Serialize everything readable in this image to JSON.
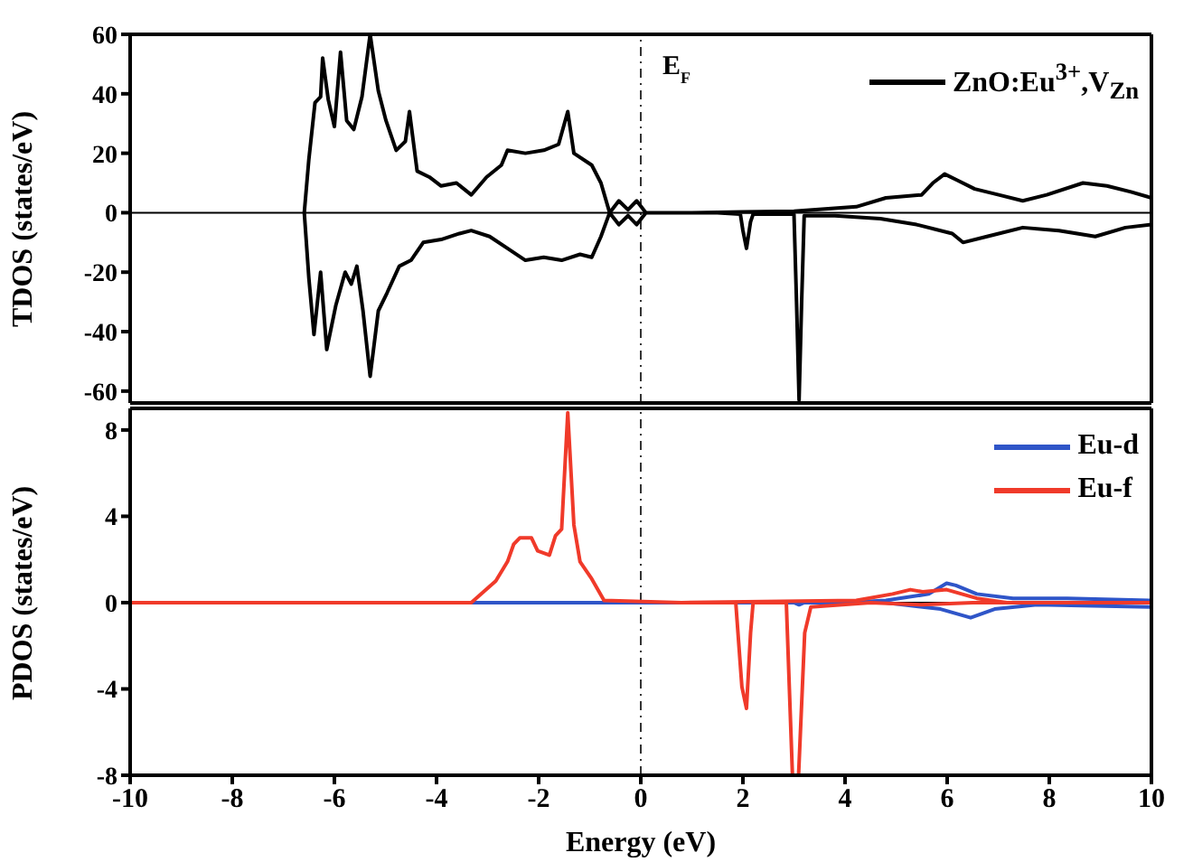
{
  "chart_data": [
    {
      "type": "line",
      "ylabel": "TDOS (states/eV)",
      "xlim": [
        -10,
        10
      ],
      "ylim": [
        -64,
        60
      ],
      "yticks": [
        -60,
        -40,
        -20,
        0,
        20,
        40,
        60
      ],
      "tick_labels": "y",
      "legend": "top right",
      "marker": "none",
      "line_style": "solid",
      "ref_lines": [
        {
          "axis": "x",
          "value": 0,
          "label": "E$_{F}$",
          "color": "#333333",
          "line_style": "dashed"
        },
        {
          "axis": "y",
          "value": 0,
          "label": null,
          "color": "#000000",
          "line_style": "solid"
        }
      ],
      "series": [
        {
          "name": "ZnO:Eu$^{3+}$,V$_{Zn}$",
          "color": "#000000",
          "x": [
            -6.59,
            -6.5,
            -6.38,
            -6.27,
            -6.23,
            -6.12,
            -6.0,
            -5.88,
            -5.76,
            -5.62,
            -5.46,
            -5.3,
            -5.14,
            -4.99,
            -4.79,
            -4.61,
            -4.53,
            -4.38,
            -4.14,
            -3.91,
            -3.61,
            -3.32,
            -3.02,
            -2.73,
            -2.61,
            -2.26,
            -1.9,
            -1.61,
            -1.43,
            -1.31,
            -0.96,
            -0.78,
            -0.61,
            -0.43,
            -0.25,
            -0.08,
            0.1,
            1.0,
            2.0,
            3.0,
            4.22,
            4.8,
            5.5,
            5.72,
            5.95,
            6.19,
            6.54,
            7.01,
            7.48,
            7.95,
            8.66,
            9.13,
            9.6,
            10.0,
            null,
            -6.59,
            -6.5,
            -6.4,
            -6.27,
            -6.15,
            -5.97,
            -5.79,
            -5.67,
            -5.56,
            -5.44,
            -5.3,
            -5.14,
            -4.97,
            -4.73,
            -4.5,
            -4.26,
            -3.91,
            -3.55,
            -3.32,
            -2.96,
            -2.61,
            -2.26,
            -1.9,
            -1.55,
            -1.19,
            -0.96,
            -0.78,
            -0.61,
            -0.43,
            -0.25,
            -0.08,
            0.1,
            1.5,
            1.95,
            2.0,
            2.07,
            2.15,
            2.2,
            3.0,
            3.05,
            3.1,
            3.15,
            3.2,
            3.8,
            4.69,
            5.4,
            6.1,
            6.31,
            6.78,
            7.48,
            8.19,
            8.9,
            9.49,
            10.0
          ],
          "values": [
            0,
            18,
            37,
            39,
            52,
            38,
            29,
            54,
            31,
            28,
            39,
            60,
            41,
            31,
            21,
            24,
            34,
            14,
            12,
            9,
            10,
            6,
            12,
            16,
            21,
            20,
            21,
            23,
            34,
            20,
            16,
            10,
            0,
            4,
            1,
            4,
            0,
            0,
            0.3,
            0.5,
            2,
            5,
            6,
            10,
            13,
            11,
            8,
            6,
            4,
            6,
            10,
            9,
            7,
            5,
            null,
            0,
            -22,
            -41,
            -20,
            -46,
            -31,
            -20,
            -24,
            -18,
            -33,
            -55,
            -33,
            -27,
            -18,
            -16,
            -10,
            -9,
            -7,
            -6,
            -8,
            -12,
            -16,
            -15,
            -16,
            -14,
            -15,
            -8,
            0,
            -4,
            -1,
            -4,
            0,
            0,
            -0.5,
            -6,
            -12,
            -3,
            -0.5,
            -0.5,
            -30,
            -63,
            -30,
            -1,
            -1,
            -2,
            -4,
            -7,
            -10,
            -8,
            -5,
            -6,
            -8,
            -5,
            -4
          ]
        }
      ]
    },
    {
      "type": "line",
      "xlabel": "Energy (eV)",
      "ylabel": "PDOS (states/eV)",
      "xlim": [
        -10,
        10
      ],
      "xticks": [
        -10,
        -8,
        -6,
        -4,
        -2,
        0,
        2,
        4,
        6,
        8,
        10
      ],
      "ylim": [
        -8,
        9
      ],
      "yticks": [
        -8,
        -4,
        0,
        4,
        8
      ],
      "legend": "top right",
      "marker": "none",
      "line_style": "solid",
      "ref_lines": [
        {
          "axis": "x",
          "value": 0,
          "label": null,
          "color": "#333333",
          "line_style": "dashed"
        },
        {
          "axis": "y",
          "value": 0,
          "label": null,
          "color": "#000000",
          "line_style": "solid"
        }
      ],
      "series": [
        {
          "name": "Eu-d",
          "color": "#2f55c8",
          "x": [
            -10,
            4.0,
            4.8,
            5.64,
            5.99,
            6.17,
            6.58,
            7.29,
            8.35,
            10.0
          ],
          "values": [
            0,
            0,
            0.1,
            0.4,
            0.9,
            0.8,
            0.4,
            0.2,
            0.2,
            0.1
          ]
        },
        {
          "color": "#2f55c8",
          "x": [
            -10,
            3.0,
            3.1,
            3.2,
            4.8,
            5.87,
            6.46,
            6.93,
            7.76,
            10.0
          ],
          "values": [
            0,
            0,
            -0.1,
            0,
            0,
            -0.3,
            -0.7,
            -0.3,
            -0.1,
            -0.2
          ]
        },
        {
          "name": "Eu-f",
          "color": "#f03a2a",
          "x": [
            -10,
            -3.32,
            -3.08,
            -2.84,
            -2.61,
            -2.49,
            -2.37,
            -2.14,
            -2.02,
            -1.79,
            -1.67,
            -1.55,
            -1.43,
            -1.31,
            -1.19,
            -0.96,
            -0.72,
            0.8,
            4.22,
            4.93,
            5.28,
            5.52,
            5.99,
            6.58,
            7.17,
            10.0
          ],
          "values": [
            0,
            0,
            0.5,
            1,
            1.9,
            2.7,
            3.0,
            3.0,
            2.4,
            2.2,
            3.1,
            3.4,
            8.8,
            3.6,
            1.9,
            1.1,
            0.1,
            0,
            0.1,
            0.4,
            0.6,
            0.5,
            0.6,
            0.2,
            0,
            0
          ]
        },
        {
          "color": "#f03a2a",
          "x": [
            0.8,
            1.86,
            1.98,
            2.07,
            2.15,
            2.2,
            2.85,
            2.97,
            3.09,
            3.21,
            3.33,
            4.5,
            5.5,
            6.5,
            10.0
          ],
          "values": [
            0,
            0,
            -3.9,
            -4.9,
            -1.4,
            0,
            0,
            -8,
            -8,
            -1.4,
            -0.2,
            0,
            -0.1,
            0,
            0
          ]
        }
      ]
    }
  ]
}
